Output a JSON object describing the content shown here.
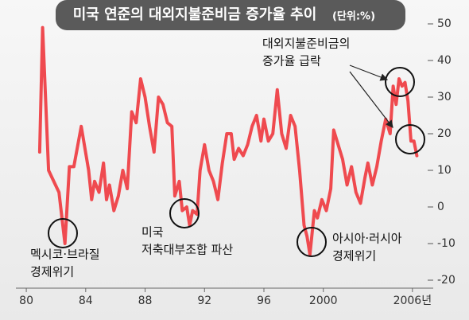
{
  "chart_data": {
    "type": "line",
    "title": "미국 연준의 대외지불준비금 증가율 추이",
    "subtitle": "(단위:%)",
    "x": [
      1980.9,
      1981.1,
      1981.5,
      1982.2,
      1982.6,
      1982.9,
      1983.2,
      1983.7,
      1984.2,
      1984.4,
      1984.6,
      1984.9,
      1985.2,
      1985.4,
      1985.6,
      1985.9,
      1986.2,
      1986.5,
      1986.8,
      1987.1,
      1987.4,
      1987.7,
      1988.0,
      1988.3,
      1988.6,
      1988.9,
      1989.2,
      1989.5,
      1989.8,
      1990.0,
      1990.3,
      1990.5,
      1990.8,
      1991.0,
      1991.2,
      1991.5,
      1991.7,
      1992.0,
      1992.3,
      1992.6,
      1992.9,
      1993.2,
      1993.5,
      1993.8,
      1994.0,
      1994.3,
      1994.6,
      1994.9,
      1995.2,
      1995.5,
      1995.8,
      1996.0,
      1996.3,
      1996.6,
      1996.9,
      1997.2,
      1997.5,
      1997.8,
      1998.1,
      1998.4,
      1998.7,
      1998.9,
      1999.1,
      1999.4,
      1999.6,
      1999.9,
      2000.2,
      2000.5,
      2000.7,
      2001.0,
      2001.3,
      2001.6,
      2001.9,
      2002.2,
      2002.5,
      2002.8,
      2003.0,
      2003.3,
      2003.6,
      2003.9,
      2004.2,
      2004.5,
      2004.7,
      2004.9,
      2005.1,
      2005.3,
      2005.5,
      2005.7,
      2005.9,
      2006.1,
      2006.3
    ],
    "values": [
      15,
      49,
      10,
      4,
      -10,
      11,
      11,
      22,
      10,
      2,
      7,
      4,
      12,
      2,
      6,
      -1,
      3,
      10,
      5,
      26,
      23,
      35,
      30,
      22,
      15,
      30,
      28,
      23,
      22,
      3,
      7,
      -1,
      0,
      -5,
      -1,
      -2,
      10,
      17,
      10,
      7,
      2,
      12,
      20,
      20,
      13,
      16,
      14,
      17,
      22,
      25,
      18,
      24,
      18,
      20,
      32,
      20,
      16,
      25,
      22,
      10,
      -5,
      -8,
      -13,
      -1,
      -3,
      2,
      -1,
      5,
      21,
      17,
      13,
      6,
      11,
      4,
      1,
      8,
      12,
      6,
      11,
      18,
      24,
      20,
      33,
      28,
      35,
      33,
      34,
      29,
      18,
      18,
      14
    ],
    "color": "#ef4a4f",
    "xlim": [
      1979.3,
      2007.4
    ],
    "ylim": [
      -20,
      50
    ],
    "xticks": [
      {
        "value": 1980,
        "label": "80"
      },
      {
        "value": 1984,
        "label": "84"
      },
      {
        "value": 1988,
        "label": "88"
      },
      {
        "value": 1992,
        "label": "92"
      },
      {
        "value": 1996,
        "label": "96"
      },
      2000,
      {
        "value": 2006,
        "label": "2006년"
      }
    ],
    "yticks": [
      50,
      40,
      30,
      20,
      10,
      0,
      -10,
      -20
    ],
    "annotations": [
      [
        "대외지불준비금의",
        "증가율 급락"
      ],
      [
        "멕시코·브라질",
        "경제위기"
      ],
      [
        "미국",
        "저축대부조합 파산"
      ],
      [
        "아시아·러시아",
        "경제위기"
      ]
    ]
  }
}
